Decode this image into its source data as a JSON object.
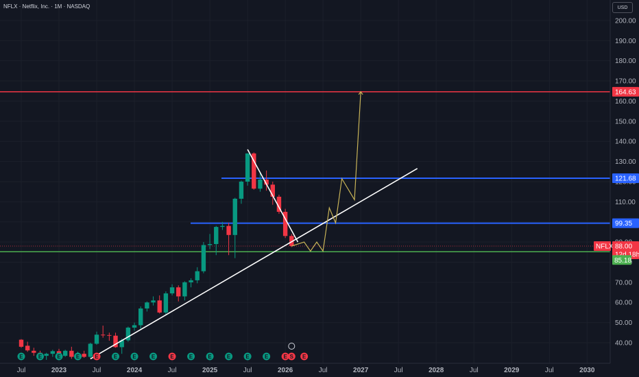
{
  "header": {
    "symbol_title": "NFLX · Netflix, Inc. · 1M · NASDAQ",
    "currency": "USD"
  },
  "colors": {
    "background": "#131722",
    "up": "#089981",
    "down": "#f23645",
    "resistance_red": "#f23645",
    "level_blue": "#2962ff",
    "support_green": "#4caf50",
    "trendline": "#ffffff",
    "projection": "#c9b458",
    "axis_text": "#b2b5be"
  },
  "price_axis": {
    "ticks": [
      "40.00",
      "50.00",
      "60.00",
      "70.00",
      "80.00",
      "90.00",
      "100.00",
      "110.00",
      "120.00",
      "130.00",
      "140.00",
      "150.00",
      "160.00",
      "170.00",
      "180.00",
      "190.00",
      "200.00"
    ]
  },
  "time_axis": {
    "labels": [
      "Jul",
      "2023",
      "Jul",
      "2024",
      "Jul",
      "2025",
      "Jul",
      "2026",
      "Jul",
      "2027",
      "Jul",
      "2028",
      "Jul",
      "2029",
      "Jul",
      "2030"
    ]
  },
  "price_tags": {
    "resistance": "164.63",
    "level_high": "121.68",
    "level_mid": "99.35",
    "symbol": "NFLX",
    "last_price": "88.00",
    "countdown": "12d 18h",
    "support": "85.18"
  },
  "events": {
    "earnings_letter": "E",
    "dividend_letter": "S"
  },
  "chart_data": {
    "type": "candlestick",
    "symbol": "NFLX",
    "timeframe": "1M",
    "y_axis": {
      "ylim": [
        35,
        205
      ],
      "scale": "linear"
    },
    "horizontal_levels": [
      {
        "price": 164.63,
        "color": "#f23645"
      },
      {
        "price": 121.68,
        "color": "#2962ff"
      },
      {
        "price": 99.35,
        "color": "#2962ff"
      },
      {
        "price": 85.18,
        "color": "#4caf50"
      }
    ],
    "last_price": 88.0,
    "candles": [
      [
        "2022-06",
        41.5,
        41.8,
        37.5,
        38.0
      ],
      [
        "2022-07",
        38.5,
        40.5,
        35.5,
        36.2
      ],
      [
        "2022-08",
        36.0,
        37.5,
        33.5,
        35.0
      ],
      [
        "2022-09",
        35.0,
        36.0,
        32.0,
        33.5
      ],
      [
        "2022-10",
        33.5,
        35.0,
        31.5,
        34.5
      ],
      [
        "2022-11",
        34.5,
        36.5,
        33.0,
        35.8
      ],
      [
        "2022-12",
        35.8,
        37.0,
        32.5,
        33.5
      ],
      [
        "2023-01",
        33.5,
        36.5,
        33.0,
        36.0
      ],
      [
        "2023-02",
        36.0,
        38.0,
        32.0,
        33.0
      ],
      [
        "2023-03",
        33.0,
        35.5,
        31.5,
        34.5
      ],
      [
        "2023-04",
        34.5,
        36.0,
        32.5,
        33.0
      ],
      [
        "2023-05",
        33.0,
        40.0,
        32.5,
        39.5
      ],
      [
        "2023-06",
        39.5,
        45.5,
        39.0,
        44.0
      ],
      [
        "2023-07",
        44.0,
        48.5,
        42.5,
        43.8
      ],
      [
        "2023-08",
        43.8,
        45.0,
        41.0,
        43.5
      ],
      [
        "2023-09",
        43.5,
        45.0,
        37.5,
        37.8
      ],
      [
        "2023-10",
        37.8,
        42.0,
        34.5,
        41.2
      ],
      [
        "2023-11",
        41.2,
        48.0,
        40.5,
        47.5
      ],
      [
        "2023-12",
        47.5,
        50.0,
        46.0,
        48.7
      ],
      [
        "2024-01",
        48.7,
        58.0,
        47.0,
        57.0
      ],
      [
        "2024-02",
        57.0,
        60.5,
        55.5,
        60.0
      ],
      [
        "2024-03",
        60.0,
        63.0,
        58.5,
        61.0
      ],
      [
        "2024-04",
        61.0,
        63.5,
        54.5,
        55.0
      ],
      [
        "2024-05",
        55.0,
        65.5,
        54.0,
        64.5
      ],
      [
        "2024-06",
        64.5,
        69.0,
        63.5,
        67.5
      ],
      [
        "2024-07",
        67.5,
        68.5,
        60.5,
        63.0
      ],
      [
        "2024-08",
        63.0,
        70.5,
        61.0,
        70.0
      ],
      [
        "2024-09",
        70.0,
        72.0,
        67.5,
        71.0
      ],
      [
        "2024-10",
        71.0,
        77.5,
        69.5,
        75.5
      ],
      [
        "2024-11",
        75.5,
        90.0,
        74.5,
        88.5
      ],
      [
        "2024-12",
        88.5,
        94.0,
        86.5,
        89.0
      ],
      [
        "2025-01",
        89.0,
        98.0,
        83.5,
        97.5
      ],
      [
        "2025-02",
        97.5,
        100.0,
        96.0,
        98.0
      ],
      [
        "2025-03",
        98.0,
        99.5,
        83.5,
        93.5
      ],
      [
        "2025-04",
        93.5,
        112.0,
        82.0,
        111.5
      ],
      [
        "2025-05",
        111.5,
        120.5,
        109.0,
        120.0
      ],
      [
        "2025-06",
        120.0,
        134.0,
        118.0,
        134.0
      ],
      [
        "2025-07",
        134.0,
        134.5,
        116.0,
        116.5
      ],
      [
        "2025-08",
        116.5,
        124.0,
        115.0,
        121.0
      ],
      [
        "2025-09",
        121.0,
        125.5,
        115.5,
        118.5
      ],
      [
        "2025-10",
        118.5,
        120.0,
        108.5,
        112.5
      ],
      [
        "2025-11",
        112.5,
        113.5,
        104.0,
        105.0
      ],
      [
        "2025-12",
        105.0,
        106.5,
        92.0,
        93.0
      ],
      [
        "2026-01",
        93.0,
        94.0,
        87.5,
        88.0
      ]
    ],
    "drawings": {
      "rising_trendline": [
        [
          "2023-05",
          32.0
        ],
        [
          "2027-09",
          126.5
        ]
      ],
      "falling_trendline": [
        [
          "2025-06",
          136.0
        ],
        [
          "2026-02",
          90.0
        ]
      ],
      "projection_path": [
        [
          "2026-01",
          88.0
        ],
        [
          "2026-03",
          90.0
        ],
        [
          "2026-04",
          85.5
        ],
        [
          "2026-05",
          90.0
        ],
        [
          "2026-06",
          85.5
        ],
        [
          "2026-07",
          107.0
        ],
        [
          "2026-08",
          99.5
        ],
        [
          "2026-09",
          121.5
        ],
        [
          "2026-11",
          111.0
        ],
        [
          "2027-00",
          164.6
        ]
      ]
    },
    "event_markers": [
      {
        "date": "2022-06",
        "type": "E"
      },
      {
        "date": "2022-09",
        "type": "E"
      },
      {
        "date": "2022-12",
        "type": "E"
      },
      {
        "date": "2023-03",
        "type": "E"
      },
      {
        "date": "2023-06",
        "type": "E",
        "negative": true
      },
      {
        "date": "2023-09",
        "type": "E"
      },
      {
        "date": "2023-12",
        "type": "E"
      },
      {
        "date": "2024-03",
        "type": "E"
      },
      {
        "date": "2024-06",
        "type": "E",
        "negative": true
      },
      {
        "date": "2024-09",
        "type": "E"
      },
      {
        "date": "2024-12",
        "type": "E"
      },
      {
        "date": "2025-03",
        "type": "E"
      },
      {
        "date": "2025-06",
        "type": "E"
      },
      {
        "date": "2025-09",
        "type": "E"
      },
      {
        "date": "2025-12",
        "type": "E",
        "negative": true
      },
      {
        "date": "2026-01",
        "type": "S",
        "negative": true
      },
      {
        "date": "2026-03",
        "type": "E",
        "negative": true
      }
    ]
  }
}
